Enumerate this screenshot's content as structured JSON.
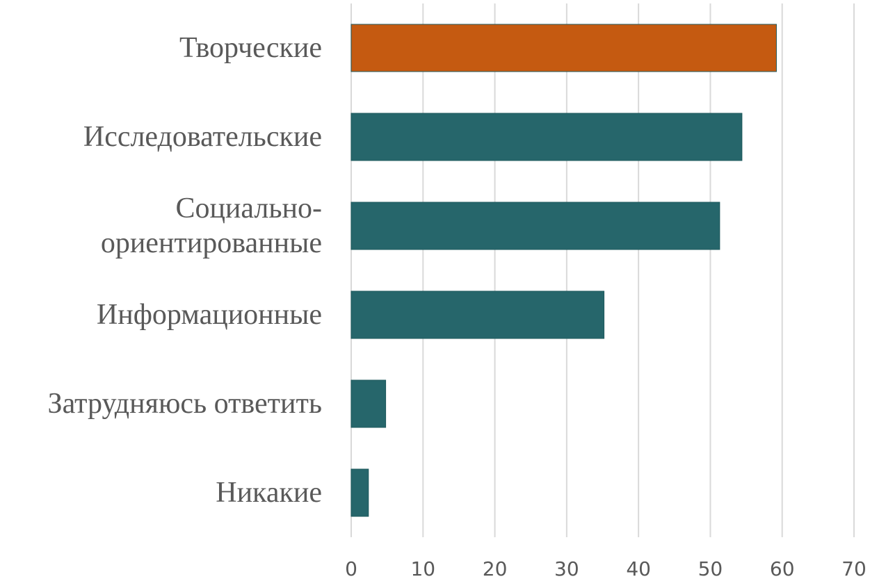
{
  "chart_data": {
    "type": "barh",
    "categories": [
      "Творческие",
      "Исследовательские",
      "Социально-ориентированные",
      "Информационные",
      "Затрудняюсь ответить",
      "Никакие"
    ],
    "values": [
      59.2,
      54.4,
      51.3,
      35.2,
      4.8,
      2.4
    ],
    "colors": [
      "#c55a11",
      "#26666b",
      "#26666b",
      "#26666b",
      "#26666b",
      "#26666b"
    ],
    "xlim": [
      0,
      70
    ],
    "xticks": [
      0,
      10,
      20,
      30,
      40,
      50,
      60,
      70
    ],
    "grid": true
  }
}
